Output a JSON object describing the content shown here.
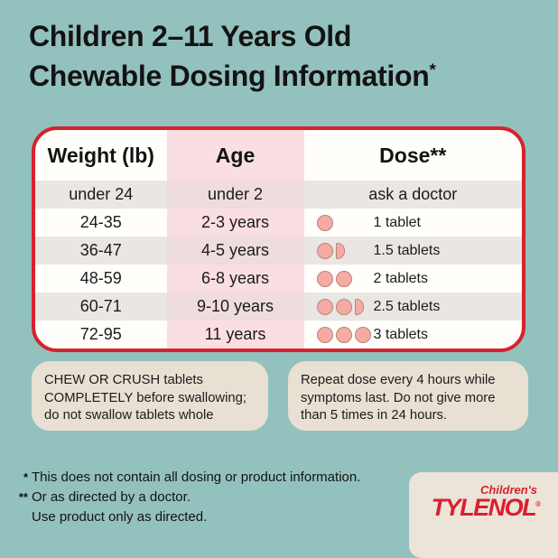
{
  "title": {
    "line1": "Children 2–11 Years Old",
    "line2": "Chewable Dosing Information",
    "footnote_marker": "*"
  },
  "table": {
    "headers": [
      "Weight (lb)",
      "Age",
      "Dose**"
    ],
    "rows": [
      {
        "weight": "under 24",
        "age": "under 2",
        "dose_label": "ask a doctor",
        "tablets": 0
      },
      {
        "weight": "24-35",
        "age": "2-3 years",
        "dose_label": "1 tablet",
        "tablets": 1
      },
      {
        "weight": "36-47",
        "age": "4-5 years",
        "dose_label": "1.5 tablets",
        "tablets": 1.5
      },
      {
        "weight": "48-59",
        "age": "6-8 years",
        "dose_label": "2 tablets",
        "tablets": 2
      },
      {
        "weight": "60-71",
        "age": "9-10 years",
        "dose_label": "2.5 tablets",
        "tablets": 2.5
      },
      {
        "weight": "72-95",
        "age": "11 years",
        "dose_label": "3 tablets",
        "tablets": 3
      }
    ]
  },
  "notes": [
    {
      "text": "CHEW OR CRUSH tablets\nCOMPLETELY before swallowing;\ndo not swallow tablets whole"
    },
    {
      "text": "Repeat dose every 4 hours while\nsymptoms last. Do not give more\nthan 5 times in 24 hours."
    }
  ],
  "footnotes": [
    {
      "marker": "*",
      "text": "This does not contain all dosing or product information."
    },
    {
      "marker": "**",
      "text": "Or as directed by a doctor."
    },
    {
      "marker": "",
      "text": "Use product only as directed."
    }
  ],
  "logo": {
    "line1": "Children's",
    "line2": "TYLENOL",
    "registered": "®"
  },
  "colors": {
    "background_teal": "#93c1bd",
    "card_border_red": "#d6222d",
    "age_column_pink": "#fbdee2",
    "age_column_pink_muted": "#efdcdc",
    "stripe_gray": "#e9e6e3",
    "tablet_pink": "#f5aba2",
    "tablet_outline": "#b5857e",
    "note_beige": "#e8e0d3",
    "logo_cream": "#ece4d8",
    "brand_red": "#da1f2e",
    "text_dark": "#131313"
  }
}
